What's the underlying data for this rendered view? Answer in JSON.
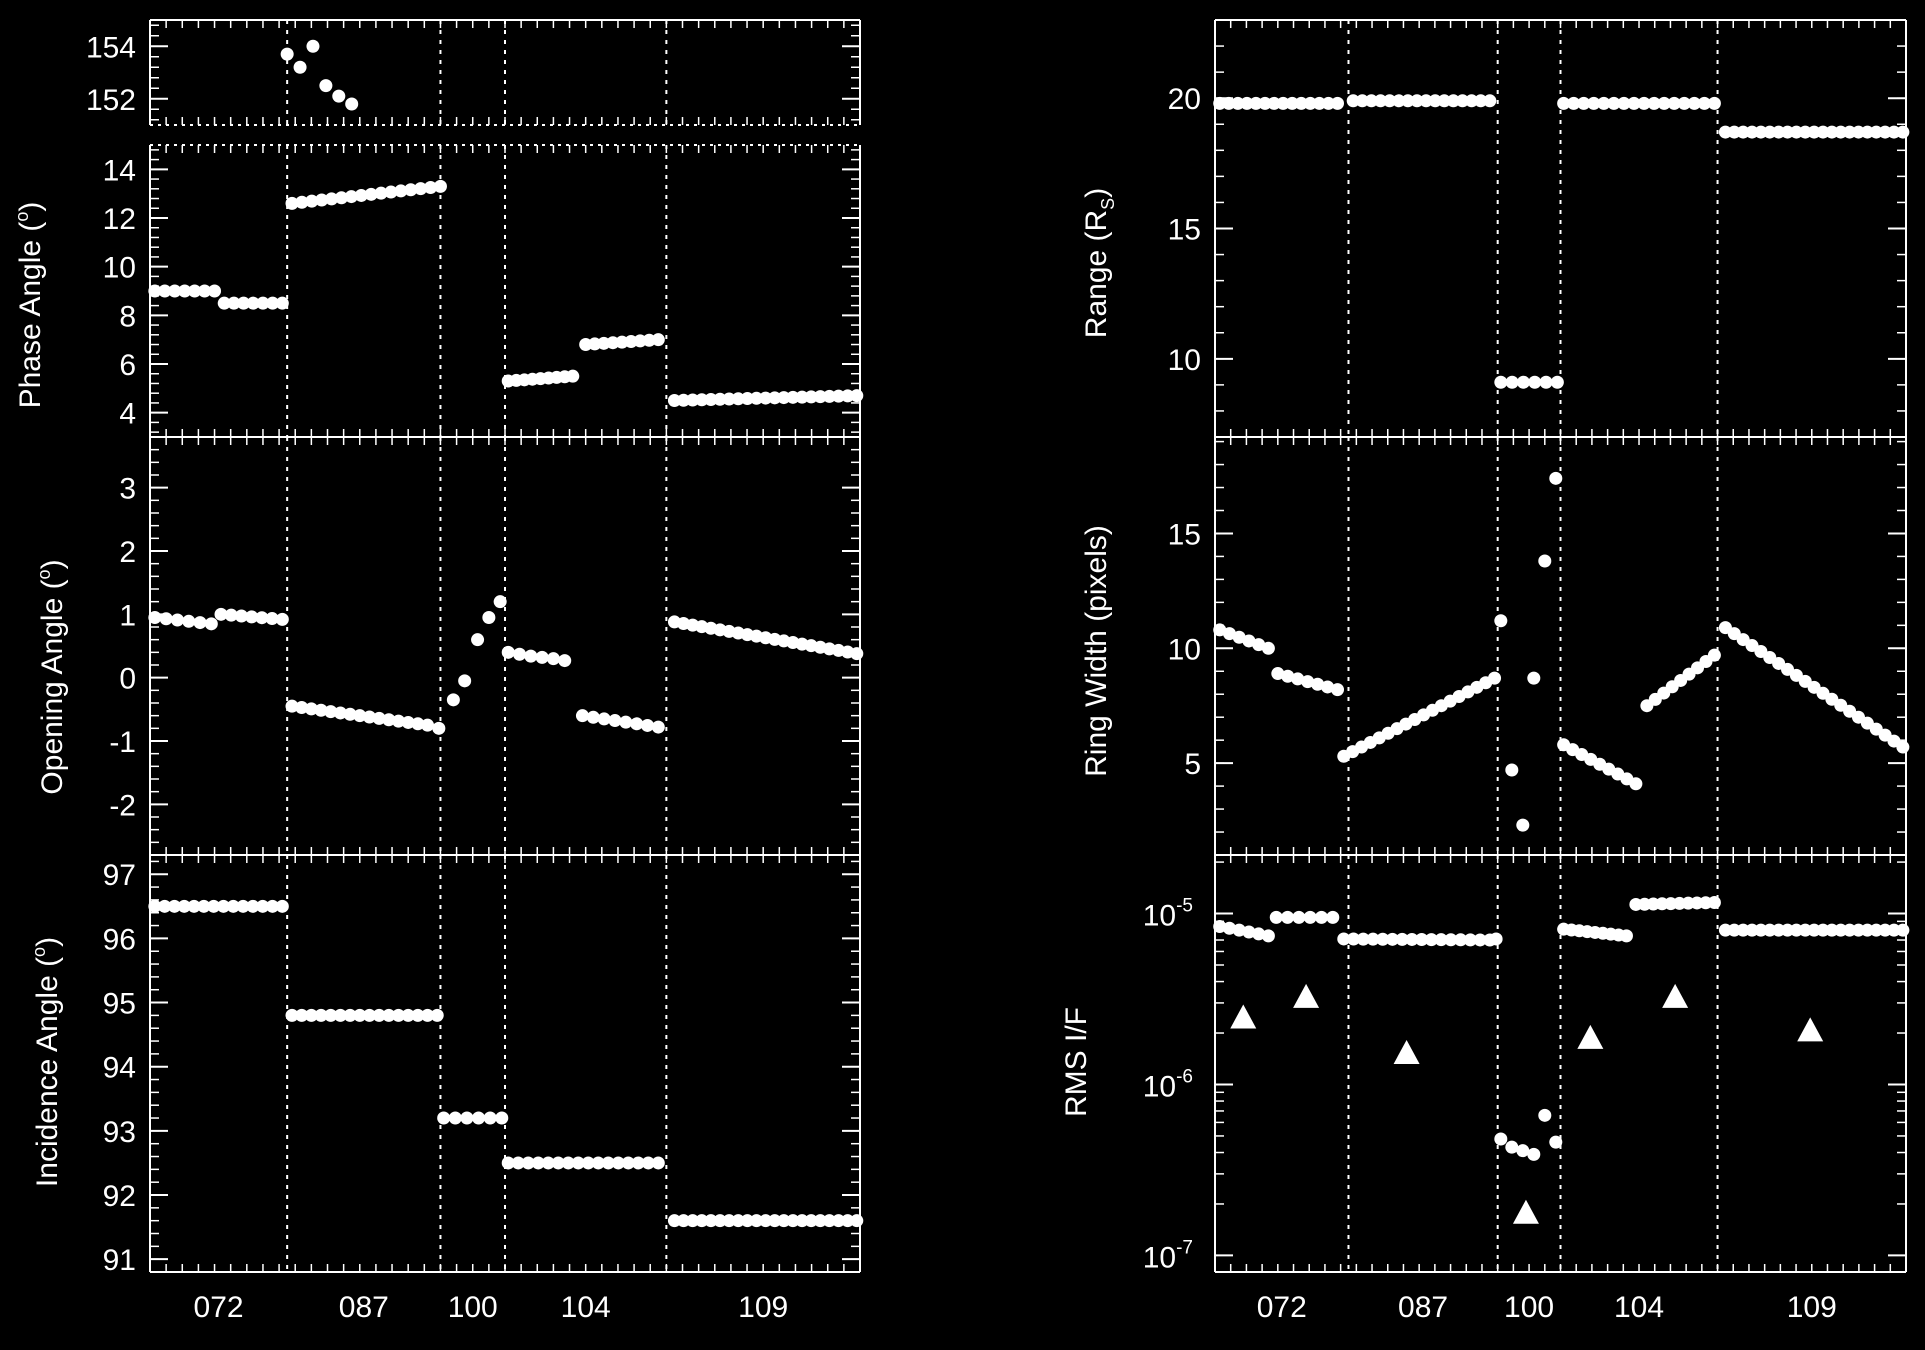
{
  "chart_data": [
    {
      "type": "scatter",
      "panel": "phase-angle-high",
      "ylim": [
        151,
        155
      ],
      "yticks": [
        152,
        154
      ],
      "series": [
        {
          "values": [
            [
              8.5,
              153.7
            ],
            [
              9.3,
              153.2
            ],
            [
              10.1,
              154.0
            ],
            [
              10.9,
              152.5
            ],
            [
              11.7,
              152.1
            ],
            [
              12.5,
              151.8
            ]
          ]
        }
      ]
    },
    {
      "type": "scatter",
      "panel": "phase-angle",
      "ylabel": "Phase Angle (°)",
      "ylim": [
        3,
        15
      ],
      "yticks": [
        4,
        6,
        8,
        10,
        12,
        14
      ],
      "series": [
        {
          "segments": [
            {
              "x0": 0.3,
              "x1": 4.0,
              "n": 7,
              "y0": 9.0,
              "y1": 9.0
            },
            {
              "x0": 4.6,
              "x1": 8.2,
              "n": 7,
              "y0": 8.5,
              "y1": 8.5
            },
            {
              "x0": 8.8,
              "x1": 18.0,
              "n": 16,
              "y0": 12.6,
              "y1": 13.3
            },
            {
              "x0": 22.2,
              "x1": 26.2,
              "n": 9,
              "y0": 5.3,
              "y1": 5.5
            },
            {
              "x0": 27.0,
              "x1": 31.5,
              "n": 9,
              "y0": 6.8,
              "y1": 7.0
            },
            {
              "x0": 32.5,
              "x1": 43.8,
              "n": 21,
              "y0": 4.5,
              "y1": 4.7
            }
          ]
        }
      ]
    },
    {
      "type": "scatter",
      "panel": "opening-angle",
      "ylabel": "Opening Angle (°)",
      "ylim": [
        -2.8,
        3.8
      ],
      "yticks": [
        -2,
        -1,
        0,
        1,
        2,
        3
      ],
      "series": [
        {
          "segments": [
            {
              "x0": 0.3,
              "x1": 3.8,
              "n": 6,
              "y0": 0.95,
              "y1": 0.85
            },
            {
              "x0": 4.4,
              "x1": 8.2,
              "n": 7,
              "y0": 1.0,
              "y1": 0.92
            },
            {
              "x0": 8.8,
              "x1": 17.2,
              "n": 15,
              "y0": -0.45,
              "y1": -0.75
            }
          ],
          "values": [
            [
              17.9,
              -0.8
            ],
            [
              18.8,
              -0.35
            ],
            [
              19.5,
              -0.05
            ],
            [
              20.3,
              0.6
            ],
            [
              21.0,
              0.95
            ],
            [
              21.7,
              1.2
            ],
            [
              22.2,
              0.4
            ],
            [
              22.9,
              0.37
            ],
            [
              23.6,
              0.34
            ],
            [
              24.3,
              0.32
            ],
            [
              25.0,
              0.3
            ],
            [
              25.7,
              0.27
            ]
          ],
          "segments2": [
            {
              "x0": 26.8,
              "x1": 31.5,
              "n": 8,
              "y0": -0.6,
              "y1": -0.78
            },
            {
              "x0": 32.5,
              "x1": 43.8,
              "n": 21,
              "y0": 0.88,
              "y1": 0.38
            }
          ]
        }
      ]
    },
    {
      "type": "scatter",
      "panel": "incidence-angle",
      "ylabel": "Incidence Angle (°)",
      "ylim": [
        90.8,
        97.3
      ],
      "yticks": [
        91,
        92,
        93,
        94,
        95,
        96,
        97
      ],
      "series": [
        {
          "segments": [
            {
              "x0": 0.3,
              "x1": 8.2,
              "n": 14,
              "y0": 96.5,
              "y1": 96.5
            },
            {
              "x0": 8.8,
              "x1": 17.8,
              "n": 16,
              "y0": 94.8,
              "y1": 94.8
            },
            {
              "x0": 18.2,
              "x1": 21.8,
              "n": 6,
              "y0": 93.2,
              "y1": 93.2
            },
            {
              "x0": 22.2,
              "x1": 31.5,
              "n": 16,
              "y0": 92.5,
              "y1": 92.5
            },
            {
              "x0": 32.5,
              "x1": 43.8,
              "n": 21,
              "y0": 91.6,
              "y1": 91.6
            }
          ]
        }
      ]
    },
    {
      "type": "scatter",
      "panel": "range",
      "ylabel": "Range (R_S)",
      "ylim": [
        7,
        23
      ],
      "yticks": [
        10,
        15,
        20
      ],
      "series": [
        {
          "segments": [
            {
              "x0": 0.3,
              "x1": 7.8,
              "n": 14,
              "y0": 19.8,
              "y1": 19.8
            },
            {
              "x0": 8.8,
              "x1": 17.5,
              "n": 16,
              "y0": 19.9,
              "y1": 19.9
            },
            {
              "x0": 18.2,
              "x1": 21.8,
              "n": 6,
              "y0": 9.1,
              "y1": 9.1
            },
            {
              "x0": 22.2,
              "x1": 31.8,
              "n": 16,
              "y0": 19.8,
              "y1": 19.8
            },
            {
              "x0": 32.5,
              "x1": 43.8,
              "n": 21,
              "y0": 18.7,
              "y1": 18.7
            }
          ]
        }
      ]
    },
    {
      "type": "scatter",
      "panel": "ring-width",
      "ylabel": "Ring Width (pixels)",
      "ylim": [
        1,
        19.2
      ],
      "yticks": [
        5,
        10,
        15
      ],
      "series": [
        {
          "segments": [
            {
              "x0": 0.3,
              "x1": 3.4,
              "n": 6,
              "y0": 10.8,
              "y1": 10.0
            },
            {
              "x0": 4.0,
              "x1": 7.8,
              "n": 7,
              "y0": 8.9,
              "y1": 8.2
            },
            {
              "x0": 8.2,
              "x1": 17.8,
              "n": 18,
              "y0": 5.3,
              "y1": 8.7
            },
            {
              "x0": 22.2,
              "x1": 26.8,
              "n": 9,
              "y0": 5.8,
              "y1": 4.1
            },
            {
              "x0": 27.5,
              "x1": 31.8,
              "n": 9,
              "y0": 7.5,
              "y1": 9.7
            },
            {
              "x0": 32.5,
              "x1": 43.8,
              "n": 21,
              "y0": 10.9,
              "y1": 5.7
            }
          ],
          "values": [
            [
              18.2,
              11.2
            ],
            [
              18.9,
              4.7
            ],
            [
              19.6,
              2.3
            ],
            [
              20.3,
              8.7
            ],
            [
              21.0,
              13.8
            ],
            [
              21.7,
              17.4
            ]
          ]
        }
      ]
    },
    {
      "type": "scatter",
      "panel": "rms-if",
      "ylabel": "RMS I/F",
      "yscale": "log",
      "ylim": [
        8e-08,
        2.2e-05
      ],
      "yticks": [
        "10^-7",
        "10^-6",
        "10^-5"
      ],
      "series": [
        {
          "marker": "circle",
          "segments": [
            {
              "x0": 0.3,
              "x1": 3.4,
              "n": 6,
              "y0": 8.4e-06,
              "y1": 7.4e-06
            },
            {
              "x0": 3.9,
              "x1": 7.5,
              "n": 6,
              "y0": 9.5e-06,
              "y1": 9.5e-06
            },
            {
              "x0": 8.2,
              "x1": 17.5,
              "n": 16,
              "y0": 7.1e-06,
              "y1": 7e-06
            },
            {
              "x0": 22.2,
              "x1": 26.2,
              "n": 9,
              "y0": 8.1e-06,
              "y1": 7.4e-06
            },
            {
              "x0": 26.8,
              "x1": 31.8,
              "n": 10,
              "y0": 1.13e-05,
              "y1": 1.16e-05
            },
            {
              "x0": 32.5,
              "x1": 43.8,
              "n": 21,
              "y0": 8e-06,
              "y1": 8e-06
            }
          ],
          "values": [
            [
              17.9,
              7.1e-06
            ],
            [
              18.2,
              4.8e-07
            ],
            [
              18.9,
              4.3e-07
            ],
            [
              19.6,
              4.1e-07
            ],
            [
              20.3,
              3.9e-07
            ],
            [
              21.0,
              6.6e-07
            ],
            [
              21.7,
              4.6e-07
            ]
          ]
        },
        {
          "marker": "triangle",
          "values": [
            [
              1.8,
              2.5e-06
            ],
            [
              5.8,
              3.3e-06
            ],
            [
              12.2,
              1.55e-06
            ],
            [
              19.8,
              1.8e-07
            ],
            [
              23.9,
              1.9e-06
            ],
            [
              29.3,
              3.3e-06
            ],
            [
              37.9,
              2.1e-06
            ]
          ]
        }
      ]
    }
  ],
  "x_axis": {
    "xlim": [
      0,
      44
    ],
    "separators": [
      8.5,
      18.0,
      22.0,
      32.0
    ],
    "tick_labels": [
      "072",
      "087",
      "100",
      "104",
      "109"
    ],
    "tick_positions": [
      4.25,
      13.25,
      20.0,
      27.0,
      38.0
    ]
  },
  "labels": {
    "phase": "Phase Angle (",
    "opening": "Opening Angle (",
    "incidence": "Incidence Angle (",
    "degree": "o",
    "close": ")",
    "range": "Range (R",
    "range_sub": "S",
    "ringwidth": "Ring Width (pixels)",
    "rmsif": "RMS I/F",
    "exp": "-7"
  }
}
